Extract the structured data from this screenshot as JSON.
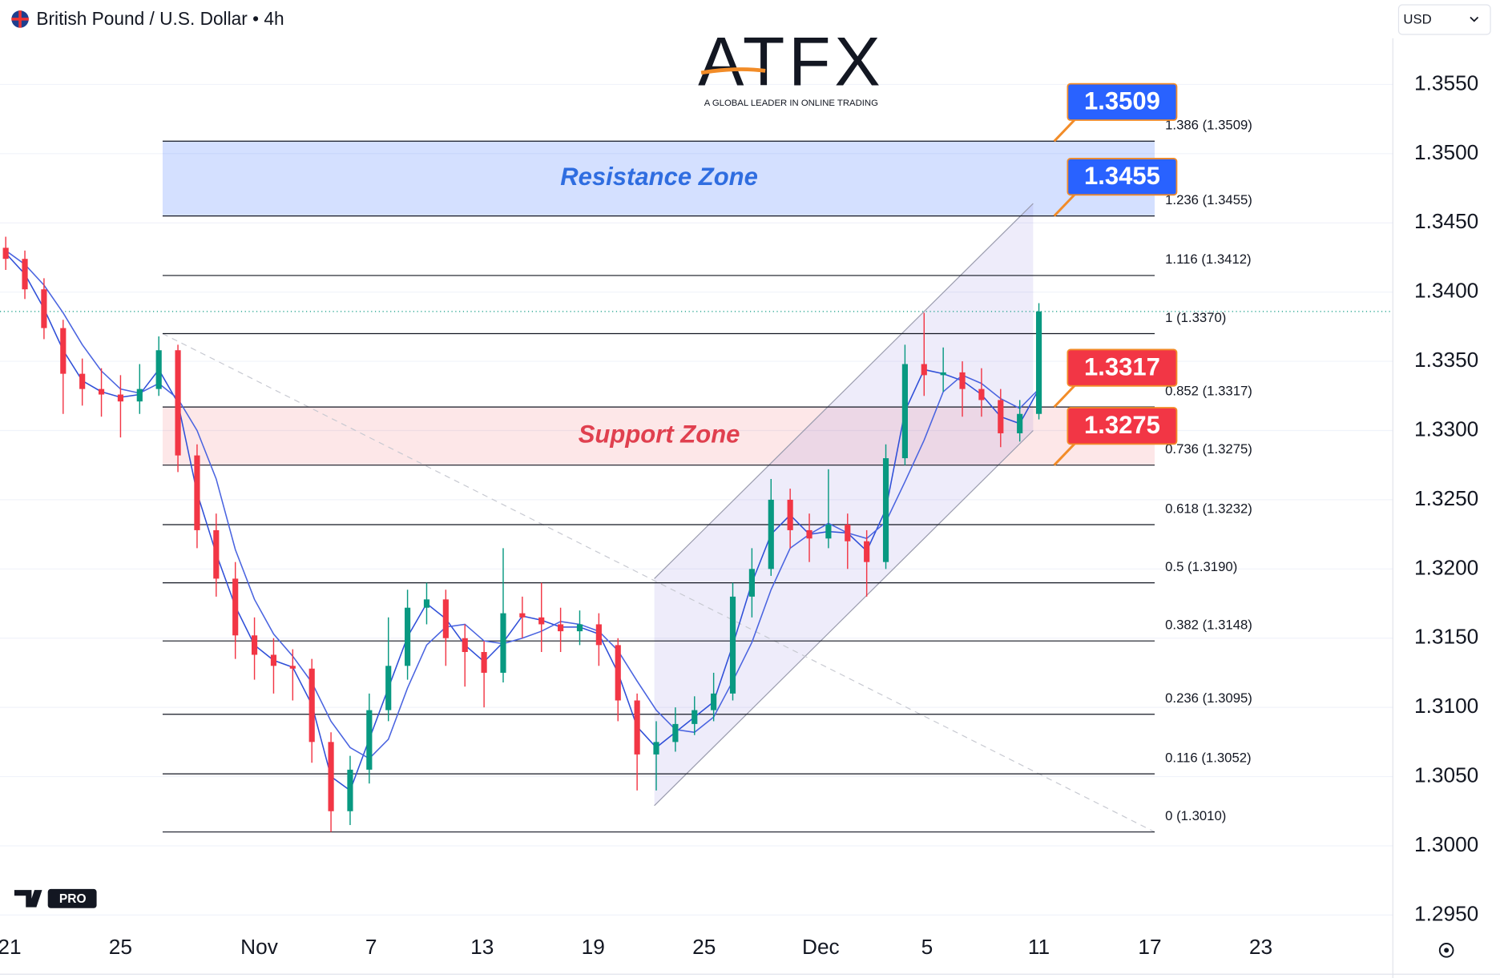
{
  "header": {
    "symbol": "British Pound / U.S. Dollar • 4h",
    "currency": "USD"
  },
  "branding": {
    "logo": "ATFX",
    "tagline": "A GLOBAL LEADER IN ONLINE TRADING",
    "platform_badge": "PRO"
  },
  "chart_data": {
    "type": "candlestick",
    "x_labels": [
      "21",
      "25",
      "Nov",
      "7",
      "13",
      "19",
      "25",
      "Dec",
      "5",
      "11",
      "17",
      "23"
    ],
    "ylim": [
      1.2937,
      1.3611
    ],
    "yticks": [
      {
        "value": 1.295,
        "label": "1.2950"
      },
      {
        "value": 1.3,
        "label": "1.3000"
      },
      {
        "value": 1.305,
        "label": "1.3050"
      },
      {
        "value": 1.31,
        "label": "1.3100"
      },
      {
        "value": 1.315,
        "label": "1.3150"
      },
      {
        "value": 1.32,
        "label": "1.3200"
      },
      {
        "value": 1.325,
        "label": "1.3250"
      },
      {
        "value": 1.33,
        "label": "1.3300"
      },
      {
        "value": 1.335,
        "label": "1.3350"
      },
      {
        "value": 1.34,
        "label": "1.3400"
      },
      {
        "value": 1.345,
        "label": "1.3450"
      },
      {
        "value": 1.35,
        "label": "1.3500"
      },
      {
        "value": 1.355,
        "label": "1.3550"
      }
    ],
    "grid": true,
    "up_color": "#089981",
    "down_color": "#f23645",
    "open": [
      1.3432,
      1.3424,
      1.3402,
      1.3374,
      1.3341,
      1.333,
      1.3326,
      1.3321,
      1.333,
      1.3358,
      1.3282,
      1.3228,
      1.3193,
      1.3152,
      1.3138,
      1.313,
      1.3128,
      1.3075,
      1.3025,
      1.3055,
      1.3098,
      1.313,
      1.3172,
      1.3178,
      1.315,
      1.314,
      1.3125,
      1.3168,
      1.3165,
      1.316,
      1.3155,
      1.316,
      1.3145,
      1.3105,
      1.3066,
      1.3075,
      1.3088,
      1.3098,
      1.311,
      1.318,
      1.32,
      1.325,
      1.3228,
      1.3222,
      1.3232,
      1.322,
      1.3205,
      1.328,
      1.3348,
      1.334,
      1.3342,
      1.333,
      1.3322,
      1.3298,
      1.3312
    ],
    "high": [
      1.344,
      1.343,
      1.341,
      1.338,
      1.3352,
      1.3345,
      1.334,
      1.3348,
      1.3368,
      1.3362,
      1.329,
      1.324,
      1.3205,
      1.3165,
      1.315,
      1.3142,
      1.3135,
      1.3082,
      1.3065,
      1.311,
      1.3165,
      1.3185,
      1.319,
      1.3185,
      1.316,
      1.3148,
      1.3215,
      1.318,
      1.319,
      1.3172,
      1.317,
      1.3168,
      1.315,
      1.311,
      1.309,
      1.31,
      1.3108,
      1.3125,
      1.319,
      1.3215,
      1.3265,
      1.3258,
      1.324,
      1.3272,
      1.324,
      1.3228,
      1.329,
      1.3362,
      1.3385,
      1.336,
      1.335,
      1.3345,
      1.333,
      1.3322,
      1.3392
    ],
    "low": [
      1.3416,
      1.3395,
      1.3366,
      1.3312,
      1.3318,
      1.331,
      1.3295,
      1.3312,
      1.3325,
      1.327,
      1.3215,
      1.318,
      1.3135,
      1.312,
      1.311,
      1.3105,
      1.306,
      1.301,
      1.3015,
      1.3045,
      1.309,
      1.312,
      1.316,
      1.313,
      1.3115,
      1.31,
      1.3118,
      1.315,
      1.314,
      1.314,
      1.3145,
      1.313,
      1.309,
      1.304,
      1.304,
      1.3068,
      1.308,
      1.309,
      1.3105,
      1.3165,
      1.3195,
      1.3215,
      1.3205,
      1.3215,
      1.32,
      1.318,
      1.32,
      1.3275,
      1.3325,
      1.3328,
      1.331,
      1.331,
      1.3288,
      1.3292,
      1.3308
    ],
    "close": [
      1.3424,
      1.3402,
      1.3374,
      1.3341,
      1.333,
      1.3326,
      1.3321,
      1.333,
      1.3358,
      1.3282,
      1.3228,
      1.3193,
      1.3152,
      1.3138,
      1.313,
      1.3128,
      1.3075,
      1.3025,
      1.3055,
      1.3098,
      1.313,
      1.3172,
      1.3178,
      1.315,
      1.314,
      1.3125,
      1.3168,
      1.3165,
      1.316,
      1.3155,
      1.316,
      1.3145,
      1.3105,
      1.3066,
      1.3075,
      1.3088,
      1.3098,
      1.311,
      1.318,
      1.32,
      1.325,
      1.3228,
      1.3222,
      1.3232,
      1.322,
      1.3205,
      1.328,
      1.3348,
      1.334,
      1.3342,
      1.333,
      1.3322,
      1.3298,
      1.3312,
      1.3386
    ],
    "moving_averages": [
      {
        "color": "#2f4fd8",
        "values": [
          1.3428,
          1.3413,
          1.3388,
          1.3358,
          1.3336,
          1.3328,
          1.3324,
          1.3326,
          1.3344,
          1.332,
          1.3255,
          1.3211,
          1.3173,
          1.3145,
          1.3134,
          1.3129,
          1.3102,
          1.305,
          1.304,
          1.3077,
          1.3114,
          1.3151,
          1.3175,
          1.3164,
          1.3145,
          1.3133,
          1.3147,
          1.3166,
          1.3163,
          1.3158,
          1.3158,
          1.3153,
          1.3125,
          1.3086,
          1.3071,
          1.3082,
          1.3093,
          1.3104,
          1.3145,
          1.319,
          1.3225,
          1.3239,
          1.3225,
          1.3227,
          1.3226,
          1.3213,
          1.3243,
          1.3314,
          1.3344,
          1.3341,
          1.3336,
          1.3326,
          1.331,
          1.3305,
          1.333
        ]
      },
      {
        "color": "#4a64e0",
        "values": [
          1.343,
          1.342,
          1.3405,
          1.3385,
          1.3362,
          1.3343,
          1.333,
          1.3327,
          1.3334,
          1.3323,
          1.33,
          1.3265,
          1.3214,
          1.3178,
          1.3153,
          1.3137,
          1.3118,
          1.309,
          1.3071,
          1.3063,
          1.3077,
          1.3114,
          1.3145,
          1.3158,
          1.316,
          1.3148,
          1.3146,
          1.315,
          1.3155,
          1.3162,
          1.316,
          1.3155,
          1.3141,
          1.3119,
          1.3098,
          1.3084,
          1.3082,
          1.3093,
          1.3119,
          1.3147,
          1.3185,
          1.3215,
          1.3225,
          1.3233,
          1.3226,
          1.3222,
          1.3234,
          1.3263,
          1.3293,
          1.3328,
          1.334,
          1.3334,
          1.3323,
          1.3316,
          1.333
        ]
      }
    ],
    "fib_levels": [
      {
        "label": "1.386 (1.3509)",
        "value": 1.3509
      },
      {
        "label": "1.236 (1.3455)",
        "value": 1.3455
      },
      {
        "label": "1.116 (1.3412)",
        "value": 1.3412
      },
      {
        "label": "1 (1.3370)",
        "value": 1.337
      },
      {
        "label": "0.852 (1.3317)",
        "value": 1.3317
      },
      {
        "label": "0.736 (1.3275)",
        "value": 1.3275
      },
      {
        "label": "0.618 (1.3232)",
        "value": 1.3232
      },
      {
        "label": "0.5 (1.3190)",
        "value": 1.319
      },
      {
        "label": "0.382 (1.3148)",
        "value": 1.3148
      },
      {
        "label": "0.236 (1.3095)",
        "value": 1.3095
      },
      {
        "label": "0.116 (1.3052)",
        "value": 1.3052
      },
      {
        "label": "0 (1.3010)",
        "value": 1.301
      }
    ],
    "zones": [
      {
        "label": "Resistance Zone",
        "low": 1.3455,
        "high": 1.3509,
        "color": "#2f6de0",
        "fill": "rgba(41,98,255,0.2)"
      },
      {
        "label": "Support Zone",
        "low": 1.3275,
        "high": 1.3317,
        "color": "#e0404f",
        "fill": "rgba(242,54,69,0.12)"
      }
    ],
    "callouts": [
      {
        "value": 1.3509,
        "color": "#2962ff"
      },
      {
        "value": 1.3455,
        "color": "#2962ff"
      },
      {
        "value": 1.3317,
        "color": "#f23645"
      },
      {
        "value": 1.3275,
        "color": "#f23645"
      }
    ],
    "channel": {
      "upper": [
        1.3193,
        1.3464
      ],
      "lower": [
        1.3029,
        1.33
      ]
    }
  }
}
